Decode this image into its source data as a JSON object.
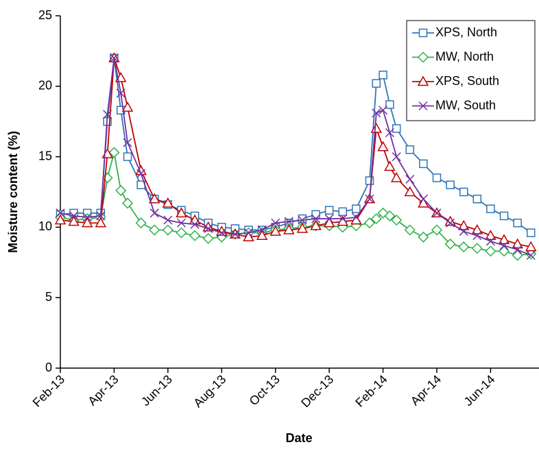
{
  "chart_data": {
    "type": "line",
    "xlabel": "Date",
    "ylabel": "Moisture content (%)",
    "x": [
      0,
      0.5,
      1,
      1.5,
      1.75,
      2,
      2.25,
      2.5,
      3,
      3.5,
      4,
      4.5,
      5,
      5.5,
      6,
      6.5,
      7,
      7.5,
      8,
      8.5,
      9,
      9.5,
      10,
      10.5,
      11,
      11.5,
      11.75,
      12,
      12.25,
      12.5,
      13,
      13.5,
      14,
      14.5,
      15,
      15.5,
      16,
      16.5,
      17,
      17.5
    ],
    "xlim": [
      0,
      17.8
    ],
    "xticks": [
      {
        "value": 0,
        "label": "Feb-13"
      },
      {
        "value": 2,
        "label": "Apr-13"
      },
      {
        "value": 4,
        "label": "Jun-13"
      },
      {
        "value": 6,
        "label": "Aug-13"
      },
      {
        "value": 8,
        "label": "Oct-13"
      },
      {
        "value": 10,
        "label": "Dec-13"
      },
      {
        "value": 12,
        "label": "Feb-14"
      },
      {
        "value": 14,
        "label": "Apr-14"
      },
      {
        "value": 16,
        "label": "Jun-14"
      }
    ],
    "ylim": [
      0,
      25
    ],
    "yticks": [
      0,
      5,
      10,
      15,
      20,
      25
    ],
    "legend": "upper right",
    "series": [
      {
        "name": "XPS, North",
        "color": "#2e75b6",
        "marker": "square",
        "values": [
          10.9,
          11.0,
          11.0,
          11.0,
          17.5,
          22.0,
          18.3,
          15.0,
          13.0,
          12.0,
          11.6,
          11.2,
          10.8,
          10.3,
          10.0,
          9.9,
          9.8,
          9.8,
          10.0,
          10.3,
          10.6,
          10.9,
          11.2,
          11.1,
          11.3,
          13.3,
          20.2,
          20.8,
          18.7,
          17.0,
          15.5,
          14.5,
          13.5,
          13.0,
          12.5,
          12.0,
          11.3,
          10.8,
          10.3,
          9.6
        ]
      },
      {
        "name": "MW, North",
        "color": "#2db24a",
        "marker": "diamond",
        "values": [
          10.7,
          10.5,
          10.6,
          10.7,
          13.5,
          15.3,
          12.6,
          11.7,
          10.3,
          9.8,
          9.8,
          9.6,
          9.4,
          9.2,
          9.3,
          9.5,
          9.6,
          9.6,
          9.8,
          9.9,
          10.0,
          10.1,
          10.1,
          10.0,
          10.1,
          10.3,
          10.6,
          11.0,
          10.8,
          10.5,
          9.8,
          9.3,
          9.8,
          8.8,
          8.6,
          8.5,
          8.3,
          8.3,
          8.0,
          8.1
        ]
      },
      {
        "name": "XPS, South",
        "color": "#c00000",
        "marker": "triangle",
        "values": [
          10.5,
          10.4,
          10.3,
          10.3,
          15.2,
          22.0,
          20.6,
          18.5,
          14.0,
          12.0,
          11.7,
          11.0,
          10.5,
          10.0,
          9.7,
          9.5,
          9.3,
          9.4,
          9.7,
          9.8,
          9.9,
          10.1,
          10.3,
          10.4,
          10.5,
          12.0,
          17.0,
          15.7,
          14.3,
          13.5,
          12.5,
          11.7,
          11.0,
          10.4,
          10.1,
          9.8,
          9.4,
          9.1,
          8.8,
          8.6
        ]
      },
      {
        "name": "MW, South",
        "color": "#7030a0",
        "marker": "x",
        "values": [
          11.0,
          10.8,
          10.7,
          10.8,
          18.0,
          22.0,
          19.5,
          16.0,
          13.8,
          11.0,
          10.5,
          10.3,
          10.2,
          9.9,
          9.6,
          9.5,
          9.6,
          9.8,
          10.3,
          10.4,
          10.5,
          10.6,
          10.6,
          10.6,
          10.7,
          12.0,
          18.1,
          18.3,
          16.7,
          15.0,
          13.4,
          12.0,
          11.0,
          10.3,
          9.7,
          9.4,
          9.0,
          8.7,
          8.4,
          8.0
        ]
      }
    ]
  }
}
